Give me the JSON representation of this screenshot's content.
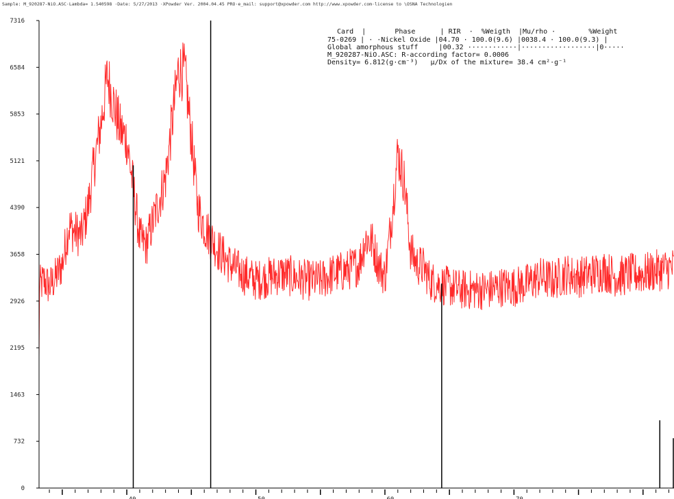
{
  "header": {
    "line": "Sample: M_920287-NiO.ASC·Lambda=  1.540598  ·Date: 5/27/2013 ·XPowder Ver. 2004.04.45 PRO·e_mail:  support@xpowder.com  http://www.xpowder.com·license to \\OSNA Technologien"
  },
  "legend": {
    "lines": [
      "  Card  |       Phase      | RIR  ·  %Weigth  |Mu/rho ·        %Weight",
      "75-0269 | · ·Nickel Oxide |04.70 · 100.0(9.6) |0038.4 · 100.0(9.3) |",
      "Global amorphous stuff     |00.32 ············|··················|0·····",
      "M_920287-NiO.ASC: R-according factor= 0.0006",
      "Density= 6.812(g·cm⁻³)   μ/Dx of the mixture= 38.4 cm²·g⁻¹"
    ]
  },
  "colors": {
    "pattern": "#ff2a2a",
    "sticks": "#000000",
    "axis": "#000000"
  },
  "chart_data": {
    "type": "line",
    "title": "",
    "xlabel": "",
    "ylabel": "",
    "xlim": [
      33.2,
      82.4
    ],
    "ylim": [
      0,
      7316
    ],
    "y_ticks": [
      "0",
      "732",
      "1463",
      "2195",
      "2926",
      "3658",
      "4390",
      "5121",
      "5853",
      "6584",
      "7316"
    ],
    "x_tick_labels": [
      "40",
      "50",
      "60",
      "70"
    ],
    "x_tick_values": [
      40,
      50,
      60,
      70
    ],
    "grid": false,
    "series": [
      {
        "values_x": [
          33.2,
          33.6,
          34.0,
          34.5,
          35.0,
          35.5,
          36.0,
          36.5,
          37.0,
          37.5,
          38.0,
          38.5,
          39.0,
          39.5,
          40.0,
          40.5,
          41.0,
          41.5,
          42.0,
          42.5,
          43.0,
          43.5,
          44.0,
          44.5,
          45.0,
          45.5,
          46.0,
          47.0,
          48.0,
          49.0,
          50.0,
          51.0,
          52.0,
          53.0,
          54.0,
          55.0,
          56.0,
          57.0,
          58.0,
          58.5,
          59.0,
          59.5,
          60.0,
          60.5,
          61.0,
          61.5,
          62.0,
          62.5,
          63.0,
          63.5,
          64.0,
          65.0,
          66.0,
          67.0,
          68.0,
          69.0,
          70.0,
          71.0,
          72.0,
          73.0,
          74.0,
          75.0,
          76.0,
          77.0,
          78.0,
          79.0,
          80.0,
          81.0,
          82.4
        ],
        "values_y": [
          3150,
          3250,
          3150,
          3300,
          3500,
          4100,
          4000,
          3950,
          4400,
          5100,
          5700,
          6450,
          6000,
          5600,
          5450,
          4700,
          3900,
          3800,
          4150,
          4500,
          4850,
          5700,
          6550,
          6500,
          5500,
          4400,
          4100,
          3750,
          3500,
          3350,
          3250,
          3300,
          3350,
          3300,
          3250,
          3250,
          3350,
          3400,
          3500,
          3900,
          3850,
          3500,
          3300,
          4200,
          5250,
          4800,
          3700,
          3500,
          3450,
          3250,
          3200,
          3150,
          3100,
          3100,
          3100,
          3150,
          3150,
          3200,
          3300,
          3250,
          3350,
          3300,
          3350,
          3400,
          3300,
          3350,
          3350,
          3400,
          3450
        ]
      }
    ],
    "sticks": [
      {
        "x": 40.5,
        "y": 5050
      },
      {
        "x": 46.5,
        "y": 7316
      },
      {
        "x": 64.4,
        "y": 3200
      },
      {
        "x": 81.3,
        "y": 1060
      },
      {
        "x": 82.4,
        "y": 780
      }
    ]
  }
}
